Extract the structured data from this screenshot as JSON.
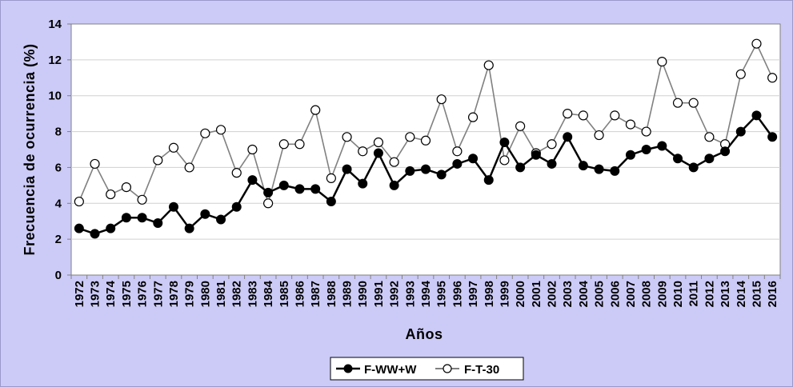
{
  "chart_data": {
    "type": "line",
    "xlabel": "Años",
    "ylabel": "Frecuencia de ocurrencia (%)",
    "ylim": [
      0,
      14
    ],
    "yticks": [
      "0",
      "2",
      "4",
      "6",
      "8",
      "10",
      "12",
      "14"
    ],
    "grid": "horizontal",
    "legend_position": "bottom",
    "categories": [
      "1972",
      "1973",
      "1974",
      "1975",
      "1976",
      "1977",
      "1978",
      "1979",
      "1980",
      "1981",
      "1982",
      "1983",
      "1984",
      "1985",
      "1986",
      "1987",
      "1988",
      "1989",
      "1990",
      "1991",
      "1992",
      "1993",
      "1994",
      "1995",
      "1996",
      "1997",
      "1998",
      "1999",
      "2000",
      "2001",
      "2002",
      "2003",
      "2004",
      "2005",
      "2006",
      "2007",
      "2008",
      "2009",
      "2010",
      "2011",
      "2012",
      "2013",
      "2014",
      "2015",
      "2016"
    ],
    "series": [
      {
        "name": "F-WW+W",
        "color": "#000000",
        "marker": "filled-circle",
        "values": [
          2.6,
          2.3,
          2.6,
          3.2,
          3.2,
          2.9,
          3.8,
          2.6,
          3.4,
          3.1,
          3.8,
          5.3,
          4.6,
          5.0,
          4.8,
          4.8,
          4.1,
          5.9,
          5.1,
          6.8,
          5.0,
          5.8,
          5.9,
          5.6,
          6.2,
          6.5,
          5.3,
          7.4,
          6.0,
          6.7,
          6.2,
          7.7,
          6.1,
          5.9,
          5.8,
          6.7,
          7.0,
          7.2,
          6.5,
          6.0,
          6.5,
          6.9,
          8.0,
          8.9,
          7.7
        ]
      },
      {
        "name": "F-T-30",
        "color": "#808080",
        "marker": "open-circle",
        "values": [
          4.1,
          6.2,
          4.5,
          4.9,
          4.2,
          6.4,
          7.1,
          6.0,
          7.9,
          8.1,
          5.7,
          7.0,
          4.0,
          7.3,
          7.3,
          9.2,
          5.4,
          7.7,
          6.9,
          7.4,
          6.3,
          7.7,
          7.5,
          9.8,
          6.9,
          8.8,
          11.7,
          6.4,
          8.3,
          6.8,
          7.3,
          9.0,
          8.9,
          7.8,
          8.9,
          8.4,
          8.0,
          11.9,
          9.6,
          9.6,
          7.7,
          7.3,
          11.2,
          12.9,
          11.0
        ]
      }
    ]
  }
}
